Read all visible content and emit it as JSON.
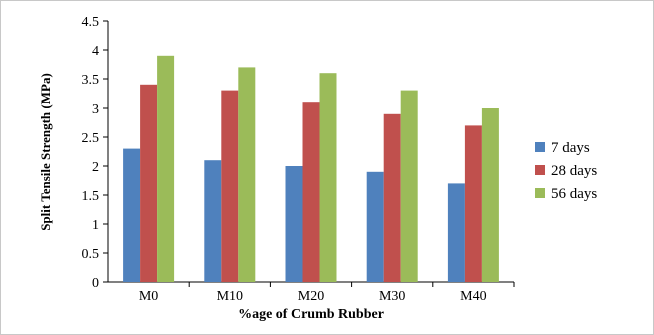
{
  "chart_data": {
    "type": "bar",
    "title": "",
    "xlabel": "%age of Crumb Rubber",
    "ylabel": "Split Tensile Strength (MPa)",
    "categories": [
      "M0",
      "M10",
      "M20",
      "M30",
      "M40"
    ],
    "series": [
      {
        "name": "7 days",
        "color": "#4f81bd",
        "values": [
          2.3,
          2.1,
          2.0,
          1.9,
          1.7
        ]
      },
      {
        "name": "28 days",
        "color": "#c0504d",
        "values": [
          3.4,
          3.3,
          3.1,
          2.9,
          2.7
        ]
      },
      {
        "name": "56 days",
        "color": "#9bbb59",
        "values": [
          3.9,
          3.7,
          3.6,
          3.3,
          3.0
        ]
      }
    ],
    "ylim": [
      0,
      4.5
    ],
    "yticks": [
      "0",
      "0.5",
      "1",
      "1.5",
      "2",
      "2.5",
      "3",
      "3.5",
      "4",
      "4.5"
    ],
    "grid": false,
    "legend": "right"
  }
}
